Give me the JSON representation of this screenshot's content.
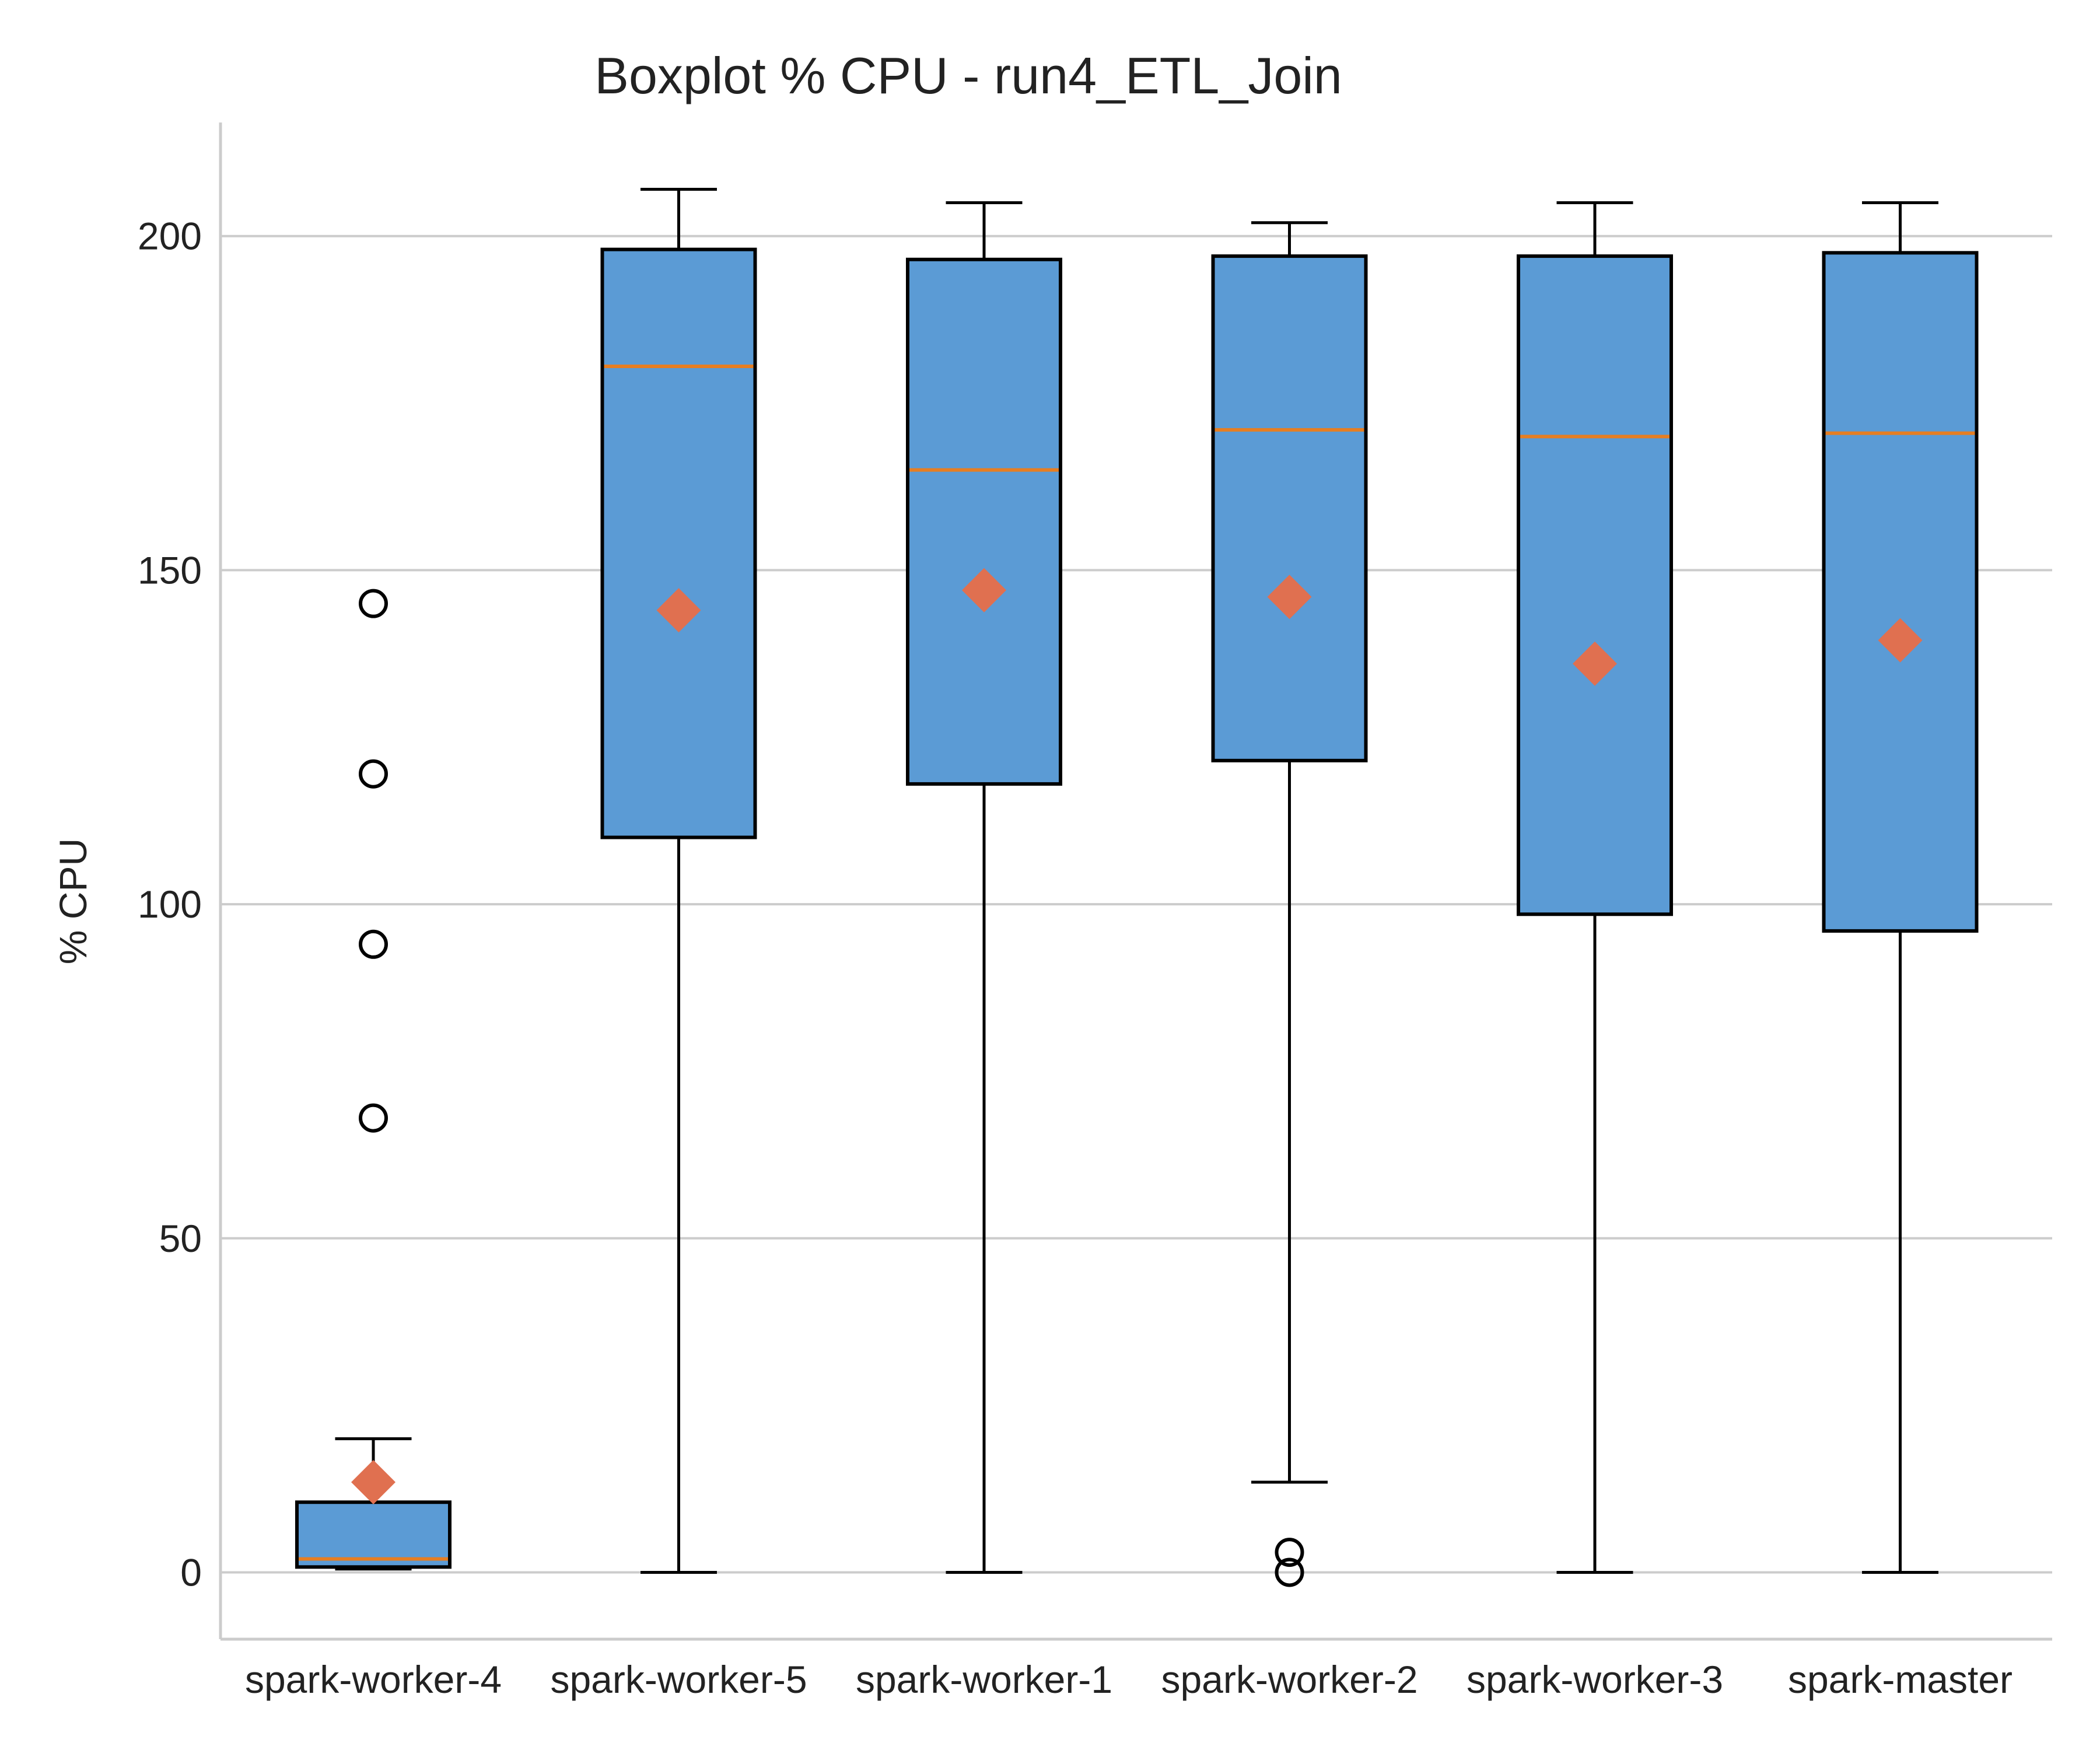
{
  "chart_data": {
    "type": "boxplot",
    "title": "Boxplot % CPU - run4_ETL_Join",
    "xlabel": "",
    "ylabel": "% CPU",
    "ylim": [
      -10,
      217
    ],
    "yticks": [
      0,
      50,
      100,
      150,
      200
    ],
    "grid": "horizontal",
    "categories": [
      "spark-worker-4",
      "spark-worker-5",
      "spark-worker-1",
      "spark-worker-2",
      "spark-worker-3",
      "spark-master"
    ],
    "boxes": [
      {
        "category": "spark-worker-4",
        "whisker_low": 0.5,
        "q1": 0.8,
        "median": 2,
        "q3": 10.5,
        "whisker_high": 20,
        "mean": 13.5,
        "outliers": [
          68,
          94,
          119.5,
          145
        ]
      },
      {
        "category": "spark-worker-5",
        "whisker_low": 0,
        "q1": 110,
        "median": 180.5,
        "q3": 198,
        "whisker_high": 207,
        "mean": 144,
        "outliers": []
      },
      {
        "category": "spark-worker-1",
        "whisker_low": 0,
        "q1": 118,
        "median": 165,
        "q3": 196.5,
        "whisker_high": 205,
        "mean": 147,
        "outliers": []
      },
      {
        "category": "spark-worker-2",
        "whisker_low": 13.5,
        "q1": 121.5,
        "median": 171,
        "q3": 197,
        "whisker_high": 202,
        "mean": 146,
        "outliers": [
          0,
          3
        ]
      },
      {
        "category": "spark-worker-3",
        "whisker_low": 0,
        "q1": 98.5,
        "median": 170,
        "q3": 197,
        "whisker_high": 205,
        "mean": 136,
        "outliers": []
      },
      {
        "category": "spark-master",
        "whisker_low": 0,
        "q1": 96,
        "median": 170.5,
        "q3": 197.5,
        "whisker_high": 205,
        "mean": 139.5,
        "outliers": []
      }
    ],
    "colors": {
      "box_fill": "#5b9bd5",
      "box_edge": "#000000",
      "median": "#e67e22",
      "mean_marker": "#e07050",
      "grid": "#cccccc",
      "axis": "#cccccc",
      "text": "#222222"
    }
  }
}
